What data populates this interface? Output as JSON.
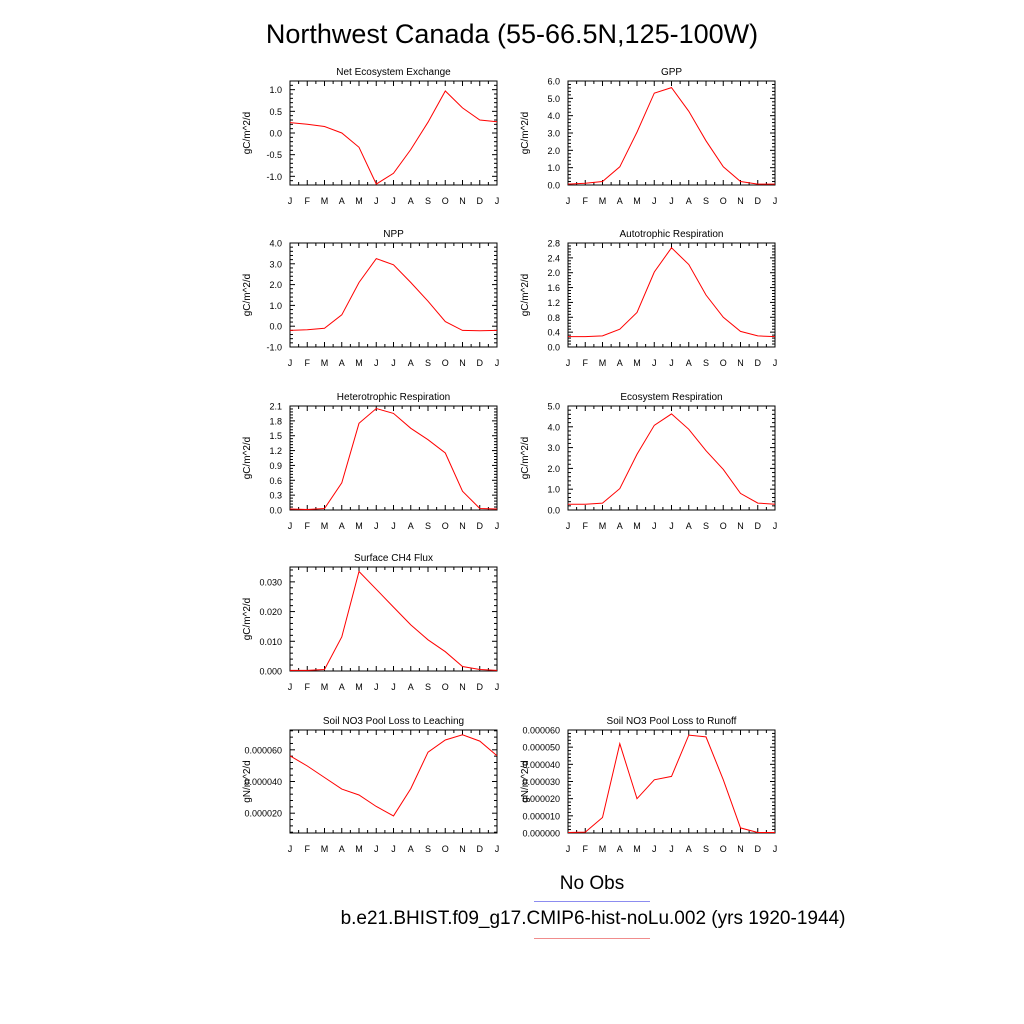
{
  "page": {
    "title": "Northwest Canada (55-66.5N,125-100W)",
    "legend": {
      "obs_label": "No Obs",
      "obs_color": "#8c8cf0",
      "model_label": "b.e21.BHIST.f09_g17.CMIP6-hist-noLu.002 (yrs 1920-1944)",
      "model_color": "#f08c8c"
    },
    "line_color": "#ff0000"
  },
  "chart_data": [
    {
      "type": "line",
      "title": "Net Ecosystem Exchange",
      "ylabel": "gC/m^2/d",
      "x": [
        "J",
        "F",
        "M",
        "A",
        "M",
        "J",
        "J",
        "A",
        "S",
        "O",
        "N",
        "D",
        "J"
      ],
      "series": [
        {
          "values": [
            0.24,
            0.2,
            0.15,
            0.0,
            -0.33,
            -1.18,
            -0.93,
            -0.38,
            0.25,
            0.97,
            0.58,
            0.3,
            0.26
          ]
        }
      ],
      "ylim": [
        -1.2,
        1.2
      ],
      "yticks": [
        -1.0,
        -0.5,
        0.0,
        0.5,
        1.0
      ],
      "yticklabels": [
        "-1.0",
        "-0.5",
        "0.0",
        "0.5",
        "1.0"
      ]
    },
    {
      "type": "line",
      "title": "GPP",
      "ylabel": "gC/m^2/d",
      "x": [
        "J",
        "F",
        "M",
        "A",
        "M",
        "J",
        "J",
        "A",
        "S",
        "O",
        "N",
        "D",
        "J"
      ],
      "series": [
        {
          "values": [
            0.05,
            0.1,
            0.2,
            1.05,
            3.05,
            5.3,
            5.62,
            4.25,
            2.55,
            1.05,
            0.2,
            0.05,
            0.05
          ]
        }
      ],
      "ylim": [
        0.0,
        6.0
      ],
      "yticks": [
        0,
        1,
        2,
        3,
        4,
        5,
        6
      ],
      "yticklabels": [
        "0.0",
        "1.0",
        "2.0",
        "3.0",
        "4.0",
        "5.0",
        "6.0"
      ]
    },
    {
      "type": "line",
      "title": "NPP",
      "ylabel": "gC/m^2/d",
      "x": [
        "J",
        "F",
        "M",
        "A",
        "M",
        "J",
        "J",
        "A",
        "S",
        "O",
        "N",
        "D",
        "J"
      ],
      "series": [
        {
          "values": [
            -0.2,
            -0.17,
            -0.1,
            0.55,
            2.1,
            3.25,
            2.95,
            2.1,
            1.2,
            0.22,
            -0.2,
            -0.22,
            -0.2
          ]
        }
      ],
      "ylim": [
        -1.0,
        4.0
      ],
      "yticks": [
        -1,
        0,
        1,
        2,
        3,
        4
      ],
      "yticklabels": [
        "-1.0",
        "0.0",
        "1.0",
        "2.0",
        "3.0",
        "4.0"
      ]
    },
    {
      "type": "line",
      "title": "Autotrophic Respiration",
      "ylabel": "gC/m^2/d",
      "x": [
        "J",
        "F",
        "M",
        "A",
        "M",
        "J",
        "J",
        "A",
        "S",
        "O",
        "N",
        "D",
        "J"
      ],
      "series": [
        {
          "values": [
            0.28,
            0.28,
            0.3,
            0.48,
            0.93,
            2.02,
            2.67,
            2.22,
            1.4,
            0.8,
            0.42,
            0.3,
            0.28
          ]
        }
      ],
      "ylim": [
        0.0,
        2.8
      ],
      "yticks": [
        0,
        0.4,
        0.8,
        1.2,
        1.6,
        2.0,
        2.4,
        2.8
      ],
      "yticklabels": [
        "0.0",
        "0.4",
        "0.8",
        "1.2",
        "1.6",
        "2.0",
        "2.4",
        "2.8"
      ]
    },
    {
      "type": "line",
      "title": "Heterotrophic Respiration",
      "ylabel": "gC/m^2/d",
      "x": [
        "J",
        "F",
        "M",
        "A",
        "M",
        "J",
        "J",
        "A",
        "S",
        "O",
        "N",
        "D",
        "J"
      ],
      "series": [
        {
          "values": [
            0.02,
            0.01,
            0.03,
            0.55,
            1.75,
            2.05,
            1.95,
            1.65,
            1.42,
            1.15,
            0.38,
            0.03,
            0.02
          ]
        }
      ],
      "ylim": [
        0.0,
        2.1
      ],
      "yticks": [
        0,
        0.3,
        0.6,
        0.9,
        1.2,
        1.5,
        1.8,
        2.1
      ],
      "yticklabels": [
        "0.0",
        "0.3",
        "0.6",
        "0.9",
        "1.2",
        "1.5",
        "1.8",
        "2.1"
      ]
    },
    {
      "type": "line",
      "title": "Ecosystem Respiration",
      "ylabel": "gC/m^2/d",
      "x": [
        "J",
        "F",
        "M",
        "A",
        "M",
        "J",
        "J",
        "A",
        "S",
        "O",
        "N",
        "D",
        "J"
      ],
      "series": [
        {
          "values": [
            0.28,
            0.28,
            0.33,
            1.03,
            2.68,
            4.07,
            4.62,
            3.88,
            2.85,
            1.95,
            0.8,
            0.33,
            0.28
          ]
        }
      ],
      "ylim": [
        0.0,
        5.0
      ],
      "yticks": [
        0,
        1,
        2,
        3,
        4,
        5
      ],
      "yticklabels": [
        "0.0",
        "1.0",
        "2.0",
        "3.0",
        "4.0",
        "5.0"
      ]
    },
    {
      "type": "line",
      "title": "Surface CH4 Flux",
      "ylabel": "gC/m^2/d",
      "x": [
        "J",
        "F",
        "M",
        "A",
        "M",
        "J",
        "J",
        "A",
        "S",
        "O",
        "N",
        "D",
        "J"
      ],
      "series": [
        {
          "values": [
            0.0002,
            0.0002,
            0.0005,
            0.0115,
            0.0335,
            0.0275,
            0.0215,
            0.0155,
            0.0105,
            0.0065,
            0.0015,
            0.0005,
            0.0002
          ]
        }
      ],
      "ylim": [
        0.0,
        0.035
      ],
      "yticks": [
        0,
        0.01,
        0.02,
        0.03
      ],
      "yticklabels": [
        "0.000",
        "0.010",
        "0.020",
        "0.030"
      ]
    },
    {
      "type": "line",
      "title": "Soil NO3 Pool Loss to Leaching",
      "ylabel": "gN/m^2/d",
      "x": [
        "J",
        "F",
        "M",
        "A",
        "M",
        "J",
        "J",
        "A",
        "S",
        "O",
        "N",
        "D",
        "J"
      ],
      "series": [
        {
          "values": [
            5.62e-05,
            4.98e-05,
            4.25e-05,
            3.52e-05,
            3.15e-05,
            2.42e-05,
            1.83e-05,
            3.55e-05,
            5.85e-05,
            6.62e-05,
            6.95e-05,
            6.55e-05,
            5.62e-05
          ]
        }
      ],
      "ylim": [
        7.5e-06,
        7.25e-05
      ],
      "yticks": [
        2e-05,
        4e-05,
        6e-05
      ],
      "yticklabels": [
        "0.000020",
        "0.000040",
        "0.000060"
      ]
    },
    {
      "type": "line",
      "title": "Soil NO3 Pool Loss to Runoff",
      "ylabel": "gN/m^2/d",
      "x": [
        "J",
        "F",
        "M",
        "A",
        "M",
        "J",
        "J",
        "A",
        "S",
        "O",
        "N",
        "D",
        "J"
      ],
      "series": [
        {
          "values": [
            3e-07,
            5e-07,
            9e-06,
            5.2e-05,
            2e-05,
            3.1e-05,
            3.3e-05,
            5.7e-05,
            5.6e-05,
            3.1e-05,
            3e-06,
            3e-07,
            3e-07
          ]
        }
      ],
      "ylim": [
        0.0,
        6e-05
      ],
      "yticks": [
        0,
        1e-05,
        2e-05,
        3e-05,
        4e-05,
        5e-05,
        6e-05
      ],
      "yticklabels": [
        "0.000000",
        "0.000010",
        "0.000020",
        "0.000030",
        "0.000040",
        "0.000050",
        "0.000060"
      ]
    }
  ]
}
